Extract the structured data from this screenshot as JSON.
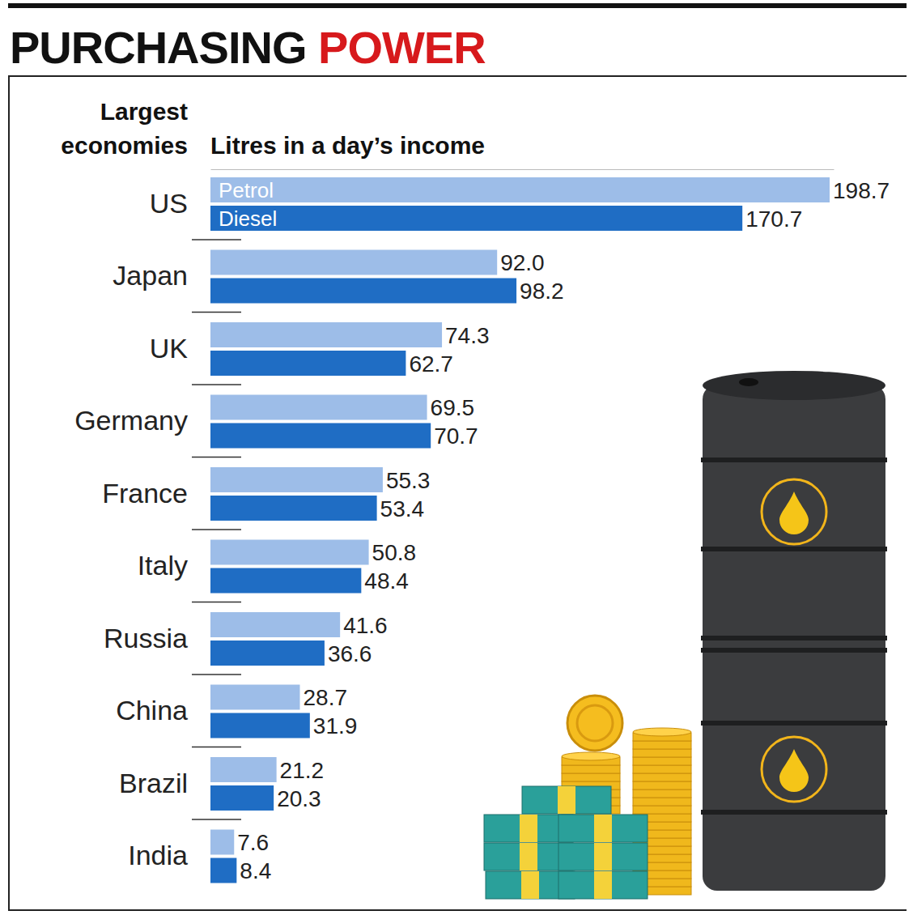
{
  "chart_data": {
    "type": "bar",
    "orientation": "horizontal",
    "title": "PURCHASING POWER",
    "ylabel": "Largest economies",
    "xlabel": "Litres in a day’s income",
    "categories": [
      "US",
      "Japan",
      "UK",
      "Germany",
      "France",
      "Italy",
      "Russia",
      "China",
      "Brazil",
      "India"
    ],
    "series": [
      {
        "name": "Petrol",
        "color": "#9dbde8",
        "values": [
          198.7,
          92.0,
          74.3,
          69.5,
          55.3,
          50.8,
          41.6,
          28.7,
          21.2,
          7.6
        ],
        "value_labels": [
          "198.7",
          "92.0",
          "74.3",
          "69.5",
          "55.3",
          "50.8",
          "41.6",
          "28.7",
          "21.2",
          "7.6"
        ]
      },
      {
        "name": "Diesel",
        "color": "#1f6dc4",
        "values": [
          170.7,
          98.2,
          62.7,
          70.7,
          53.4,
          48.4,
          36.6,
          31.9,
          20.3,
          8.4
        ],
        "value_labels": [
          "170.7",
          "98.2",
          "62.7",
          "70.7",
          "53.4",
          "48.4",
          "36.6",
          "31.9",
          "20.3",
          "8.4"
        ]
      }
    ],
    "xlim": [
      0,
      200
    ],
    "xticks": [],
    "tick_labels": false,
    "grid": false,
    "legend": "top left",
    "data_labels": true
  }
}
